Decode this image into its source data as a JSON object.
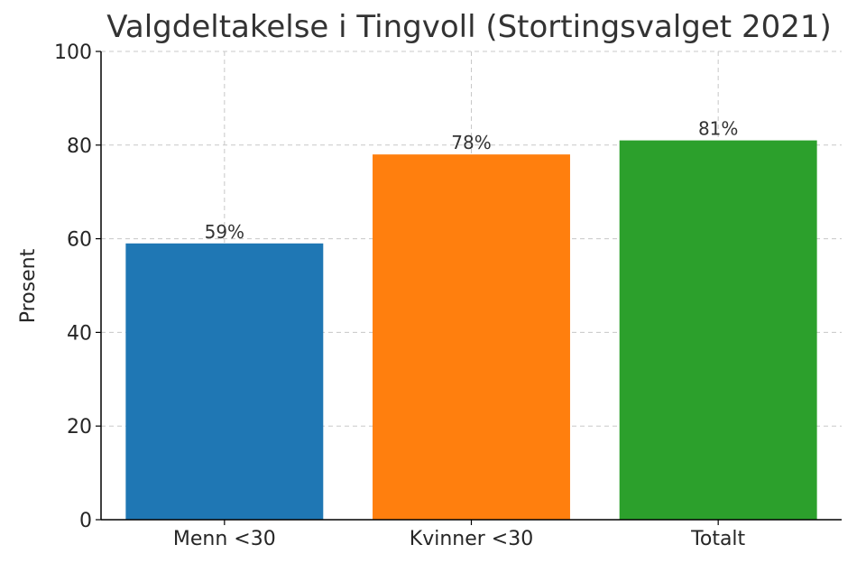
{
  "chart_data": {
    "type": "bar",
    "title": "Valgdeltakelse i Tingvoll (Stortingsvalget 2021)",
    "xlabel": "",
    "ylabel": "Prosent",
    "categories": [
      "Menn <30",
      "Kvinner <30",
      "Totalt"
    ],
    "values": [
      59,
      78,
      81
    ],
    "data_labels": [
      "59%",
      "78%",
      "81%"
    ],
    "colors": [
      "#1f77b4",
      "#ff7f0e",
      "#2ca02c"
    ],
    "ylim": [
      0,
      100
    ],
    "yticks": [
      0,
      20,
      40,
      60,
      80,
      100
    ],
    "ytick_labels": [
      "0",
      "20",
      "40",
      "60",
      "80",
      "100"
    ],
    "grid": true,
    "legend": "none"
  }
}
